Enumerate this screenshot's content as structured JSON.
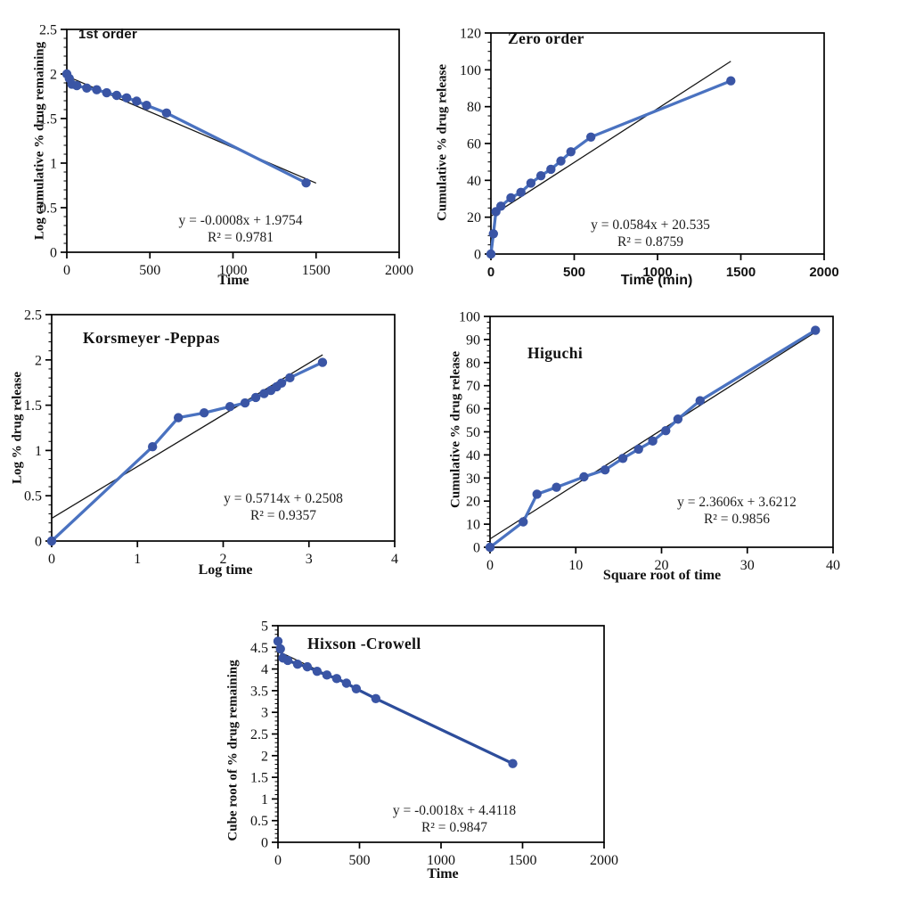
{
  "colors": {
    "marker": "#3a55a5",
    "line": "#4a72c0",
    "line_dark": "#2d4d9b",
    "trendline": "#161616",
    "axis": "#000000",
    "background": "#ffffff"
  },
  "chart_data": [
    {
      "id": "first-order",
      "type": "line",
      "title": "1st order",
      "xlabel": "Time",
      "ylabel": "Log cumulative % drug remaining",
      "equation": "y = -0.0008x + 1.9754",
      "r_squared": "R² = 0.9781",
      "xlim": [
        0,
        2000
      ],
      "ylim": [
        0,
        2.5
      ],
      "xticks": [
        0,
        500,
        1000,
        1500,
        2000
      ],
      "yticks": [
        0,
        0.5,
        1,
        1.5,
        2,
        2.5
      ],
      "minor_y_step": 0.1,
      "grid": false,
      "legend": false,
      "x": [
        0,
        15,
        30,
        60,
        120,
        180,
        240,
        300,
        360,
        420,
        480,
        600,
        1440
      ],
      "y": [
        2.0,
        1.949,
        1.886,
        1.869,
        1.842,
        1.823,
        1.789,
        1.76,
        1.732,
        1.695,
        1.648,
        1.562,
        0.778
      ],
      "trendline": {
        "slope": -0.0008,
        "intercept": 1.9754,
        "x_start": 0,
        "x_end": 1500
      }
    },
    {
      "id": "zero-order",
      "type": "line",
      "title": "Zero order",
      "xlabel": "Time (min)",
      "ylabel": "Cumulative % drug release",
      "equation": "y = 0.0584x + 20.535",
      "r_squared": "R² = 0.8759",
      "xlim": [
        0,
        2000
      ],
      "ylim": [
        0,
        120
      ],
      "xticks": [
        0,
        500,
        1000,
        1500,
        2000
      ],
      "yticks": [
        0,
        20,
        40,
        60,
        80,
        100,
        120
      ],
      "minor_y_step": 5,
      "grid": false,
      "legend": false,
      "x": [
        0,
        15,
        30,
        60,
        120,
        180,
        240,
        300,
        360,
        420,
        480,
        600,
        1440
      ],
      "y": [
        0,
        11,
        23,
        26,
        30.5,
        33.5,
        38.5,
        42.5,
        46,
        50.5,
        55.5,
        63.5,
        94
      ],
      "trendline": {
        "slope": 0.0584,
        "intercept": 20.535,
        "x_start": 0,
        "x_end": 1440
      }
    },
    {
      "id": "korsmeyer-peppas",
      "type": "line",
      "title": "Korsmeyer -Peppas",
      "xlabel": "Log time",
      "ylabel": "Log % drug release",
      "equation": "y = 0.5714x + 0.2508",
      "r_squared": "R² = 0.9357",
      "xlim": [
        0,
        4
      ],
      "ylim": [
        0,
        2.5
      ],
      "xticks": [
        0,
        1,
        2,
        3,
        4
      ],
      "yticks": [
        0,
        0.5,
        1,
        1.5,
        2,
        2.5
      ],
      "minor_y_step": 0.1,
      "grid": false,
      "legend": false,
      "x": [
        0,
        1.176,
        1.477,
        1.778,
        2.079,
        2.255,
        2.38,
        2.477,
        2.556,
        2.623,
        2.681,
        2.778,
        3.158
      ],
      "y": [
        0,
        1.041,
        1.362,
        1.415,
        1.484,
        1.525,
        1.585,
        1.628,
        1.663,
        1.703,
        1.744,
        1.803,
        1.973
      ],
      "trendline": {
        "slope": 0.5714,
        "intercept": 0.2508,
        "x_start": 0,
        "x_end": 3.16
      }
    },
    {
      "id": "higuchi",
      "type": "line",
      "title": "Higuchi",
      "xlabel": "Square root of  time",
      "ylabel": "Cumulative % drug release",
      "equation": "y = 2.3606x + 3.6212",
      "r_squared": "R² = 0.9856",
      "xlim": [
        0,
        40
      ],
      "ylim": [
        0,
        100
      ],
      "xticks": [
        0,
        10,
        20,
        30,
        40
      ],
      "yticks": [
        0,
        10,
        20,
        30,
        40,
        50,
        60,
        70,
        80,
        90,
        100
      ],
      "minor_y_step": 2.5,
      "grid": false,
      "legend": false,
      "x": [
        0,
        3.873,
        5.477,
        7.746,
        10.954,
        13.416,
        15.492,
        17.321,
        18.974,
        20.494,
        21.909,
        24.495,
        37.947
      ],
      "y": [
        0,
        11,
        23,
        26,
        30.5,
        33.5,
        38.5,
        42.5,
        46,
        50.5,
        55.5,
        63.5,
        94
      ],
      "trendline": {
        "slope": 2.3606,
        "intercept": 3.6212,
        "x_start": 0,
        "x_end": 38
      }
    },
    {
      "id": "hixson-crowell",
      "type": "line",
      "title": "Hixson -Crowell",
      "xlabel": "Time",
      "ylabel": "Cube root of % drug remaining",
      "equation": "y = -0.0018x + 4.4118",
      "r_squared": "R² = 0.9847",
      "xlim": [
        0,
        2000
      ],
      "ylim": [
        0,
        5
      ],
      "xticks": [
        0,
        500,
        1000,
        1500,
        2000
      ],
      "yticks": [
        0,
        0.5,
        1,
        1.5,
        2,
        2.5,
        3,
        3.5,
        4,
        4.5,
        5
      ],
      "minor_y_step": 0.1,
      "grid": false,
      "legend": false,
      "line_color": "#2d4d9b",
      "x": [
        0,
        15,
        30,
        60,
        120,
        180,
        240,
        300,
        360,
        420,
        480,
        600,
        1440
      ],
      "y": [
        4.642,
        4.465,
        4.254,
        4.198,
        4.111,
        4.051,
        3.947,
        3.861,
        3.78,
        3.673,
        3.543,
        3.317,
        1.817
      ],
      "trendline": {
        "slope": -0.0018,
        "intercept": 4.4118,
        "x_start": 0,
        "x_end": 1440
      }
    }
  ]
}
